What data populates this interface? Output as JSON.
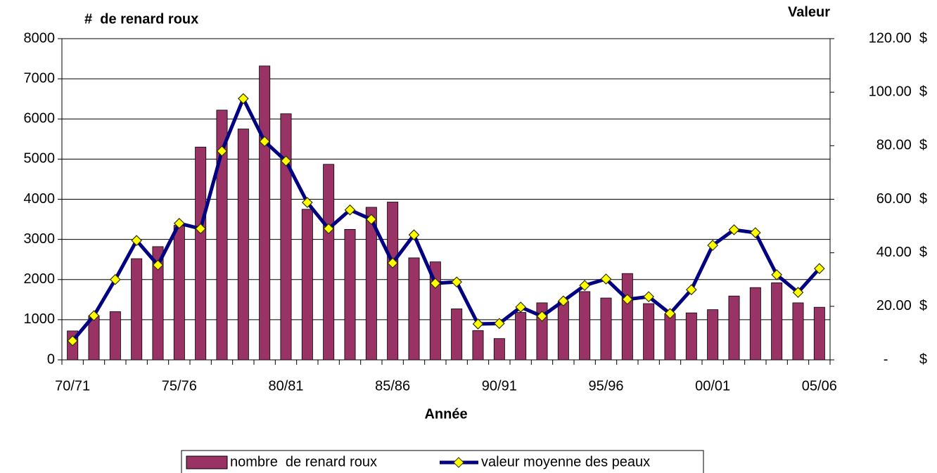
{
  "chart_data": {
    "type": "bar_line",
    "title": "#  de renard roux",
    "y2_title": "Valeur",
    "x_label": "Année",
    "categories": [
      "70/71",
      null,
      null,
      null,
      null,
      "75/76",
      null,
      null,
      null,
      null,
      "80/81",
      null,
      null,
      null,
      null,
      "85/86",
      null,
      null,
      null,
      null,
      "90/91",
      null,
      null,
      null,
      null,
      "95/96",
      null,
      null,
      null,
      null,
      "00/01",
      null,
      null,
      null,
      null,
      "05/06"
    ],
    "series": [
      {
        "name": "nombre  de renard roux",
        "type": "bar",
        "color": "#993366",
        "values": [
          720,
          1100,
          1200,
          2520,
          2820,
          3350,
          5300,
          6220,
          5750,
          7320,
          6130,
          3750,
          4870,
          3250,
          3800,
          3930,
          2540,
          2440,
          1270,
          730,
          530,
          1180,
          1420,
          1450,
          1700,
          1540,
          2150,
          1400,
          1150,
          1170,
          1250,
          1590,
          1800,
          1920,
          1420,
          1310
        ]
      },
      {
        "name": "valeur moyenne des peaux",
        "type": "line",
        "axis": "y2",
        "color": "#000080",
        "marker_color": "#ffff00",
        "values": [
          7.1,
          16.5,
          30,
          44.6,
          35.4,
          51,
          49,
          78,
          97.6,
          81.6,
          74.3,
          58.8,
          49,
          56,
          52.5,
          36.2,
          46.7,
          28.6,
          29.1,
          13.4,
          13.6,
          19.7,
          16.3,
          22,
          27.8,
          30.2,
          22.6,
          23.6,
          17.3,
          26.2,
          42.8,
          48.6,
          47.5,
          31.8,
          25.2,
          34.1
        ]
      }
    ],
    "ylim": [
      0,
      8000
    ],
    "yticks": [
      0,
      1000,
      2000,
      3000,
      4000,
      5000,
      6000,
      7000,
      8000
    ],
    "y2lim": [
      0,
      120
    ],
    "y2ticks": [
      {
        "value": 0,
        "label": "-        $"
      },
      {
        "value": 20,
        "label": "20.00  $"
      },
      {
        "value": 40,
        "label": "40.00  $"
      },
      {
        "value": 60,
        "label": "60.00  $"
      },
      {
        "value": 80,
        "label": "80.00  $"
      },
      {
        "value": 100,
        "label": "100.00  $"
      },
      {
        "value": 120,
        "label": "120.00  $"
      }
    ],
    "grid": true,
    "legend": "bottom"
  }
}
